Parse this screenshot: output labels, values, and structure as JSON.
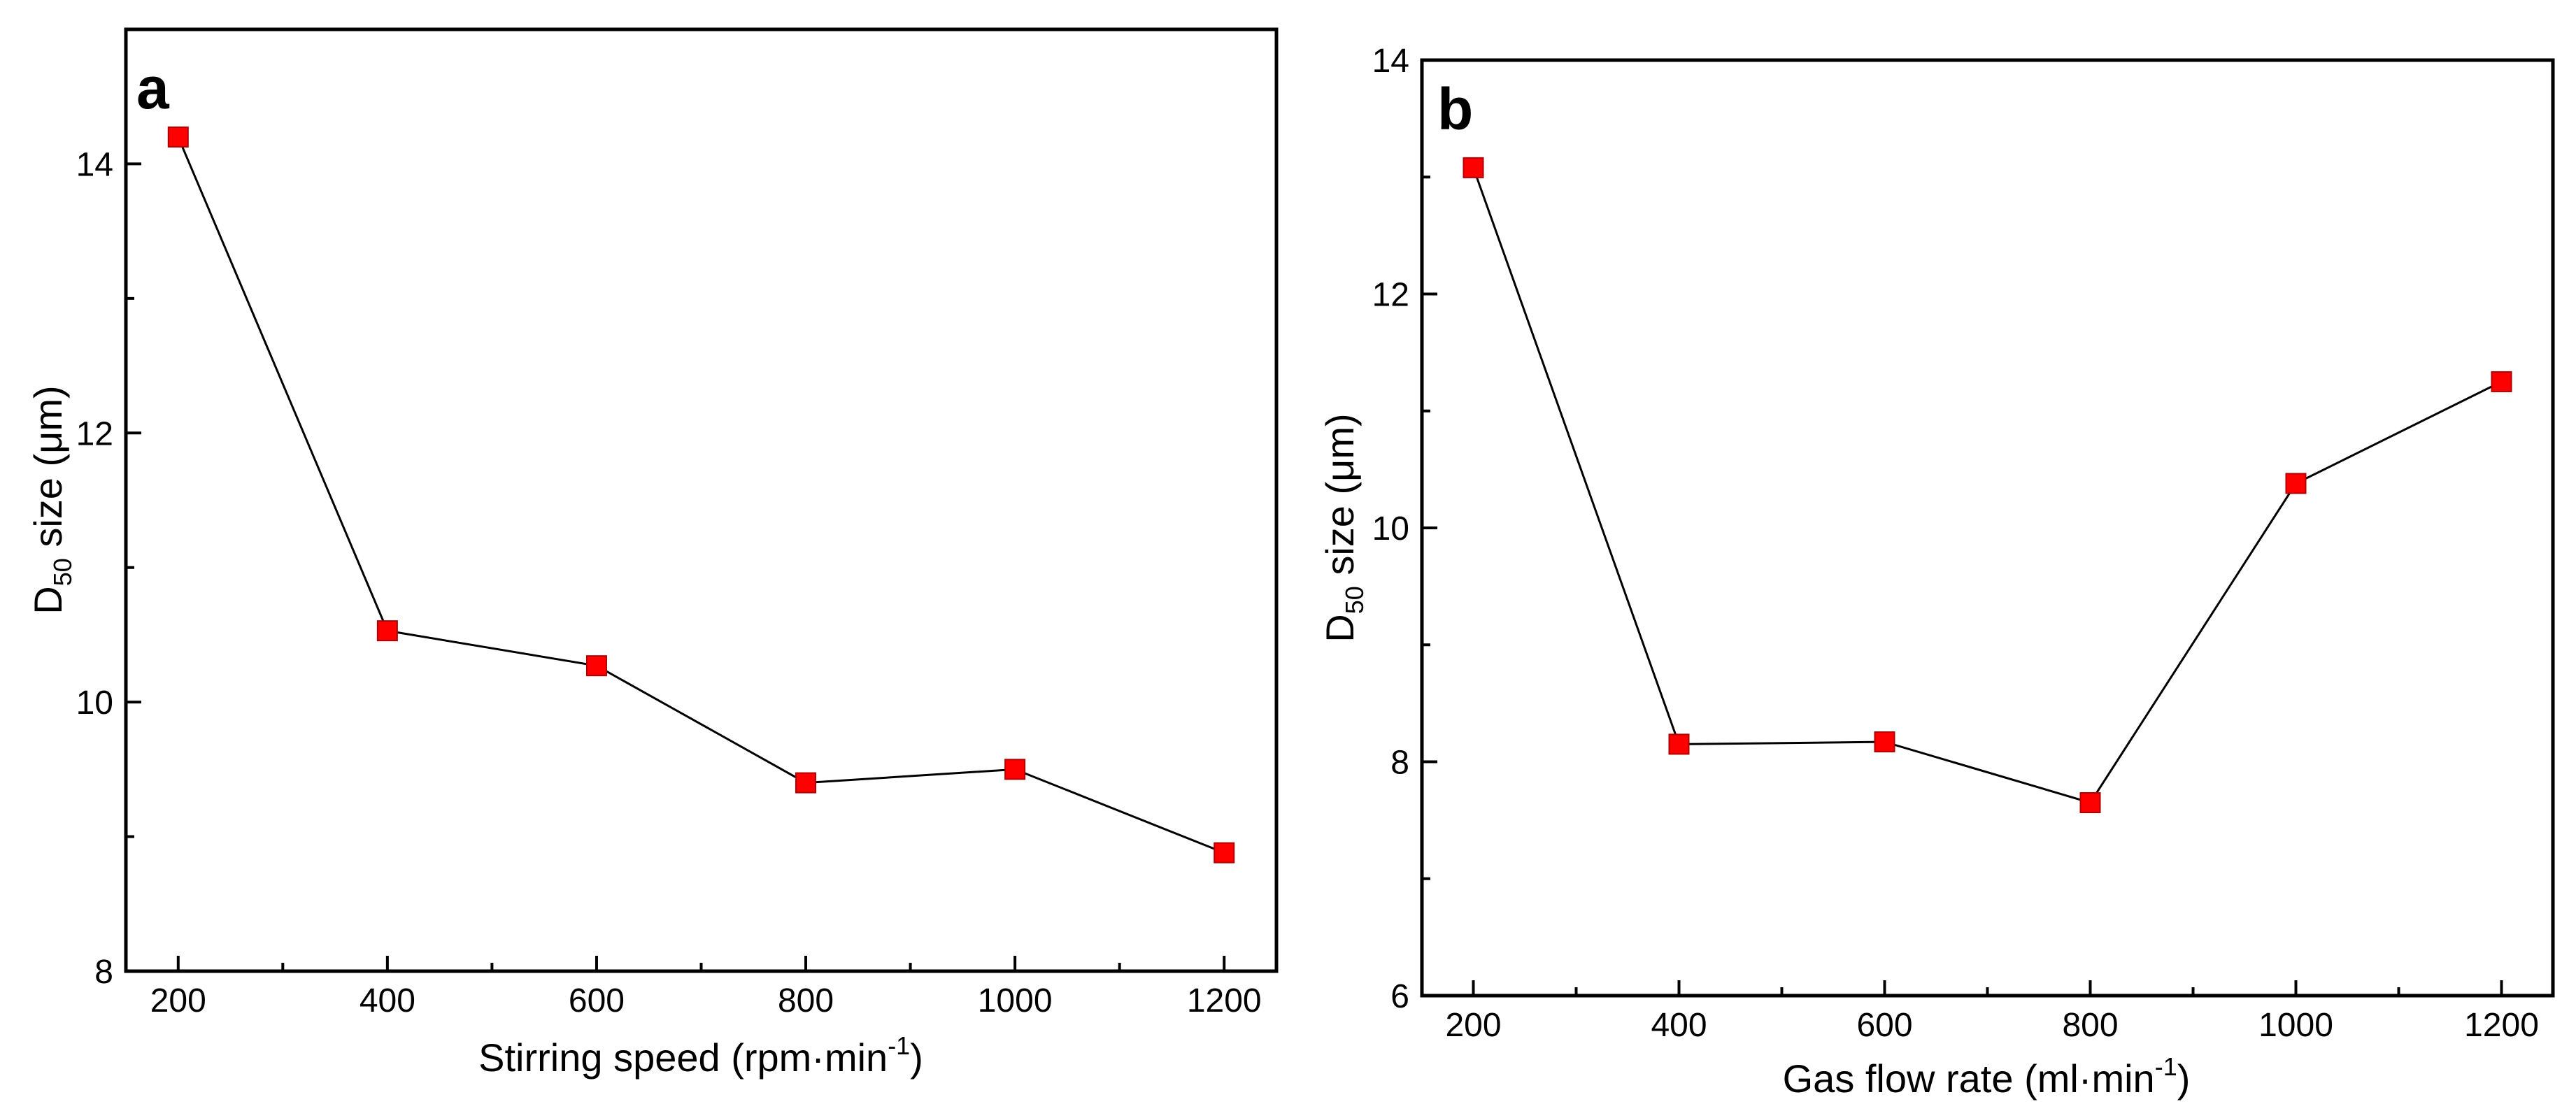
{
  "chart_data": [
    {
      "type": "line",
      "panel_label": "a",
      "xlabel": {
        "main": "Stirring speed (rpm·min",
        "sup": "-1",
        "close": ")"
      },
      "ylabel": {
        "main": "D",
        "sub": "50",
        "rest": " size (μm)"
      },
      "x": [
        200,
        400,
        600,
        800,
        1000,
        1200
      ],
      "values": [
        14.2,
        10.53,
        10.27,
        9.4,
        9.5,
        8.88
      ],
      "xlim": [
        150,
        1250
      ],
      "ylim": [
        8,
        15
      ],
      "xticks": [
        200,
        400,
        600,
        800,
        1000,
        1200
      ],
      "yticks": [
        8,
        10,
        12,
        14
      ],
      "marker_color": "#ff0000",
      "line_color": "#000000",
      "grid": false
    },
    {
      "type": "line",
      "panel_label": "b",
      "xlabel": {
        "main": "Gas flow rate (ml·min",
        "sup": "-1",
        "close": ")"
      },
      "ylabel": {
        "main": "D",
        "sub": "50",
        "rest": " size (μm)"
      },
      "x": [
        200,
        400,
        600,
        800,
        1000,
        1200
      ],
      "values": [
        13.08,
        8.15,
        8.17,
        7.65,
        10.38,
        11.25
      ],
      "xlim": [
        150,
        1250
      ],
      "ylim": [
        6,
        14
      ],
      "xticks": [
        200,
        400,
        600,
        800,
        1000,
        1200
      ],
      "yticks": [
        6,
        8,
        10,
        12,
        14
      ],
      "marker_color": "#ff0000",
      "line_color": "#000000",
      "grid": false
    }
  ]
}
